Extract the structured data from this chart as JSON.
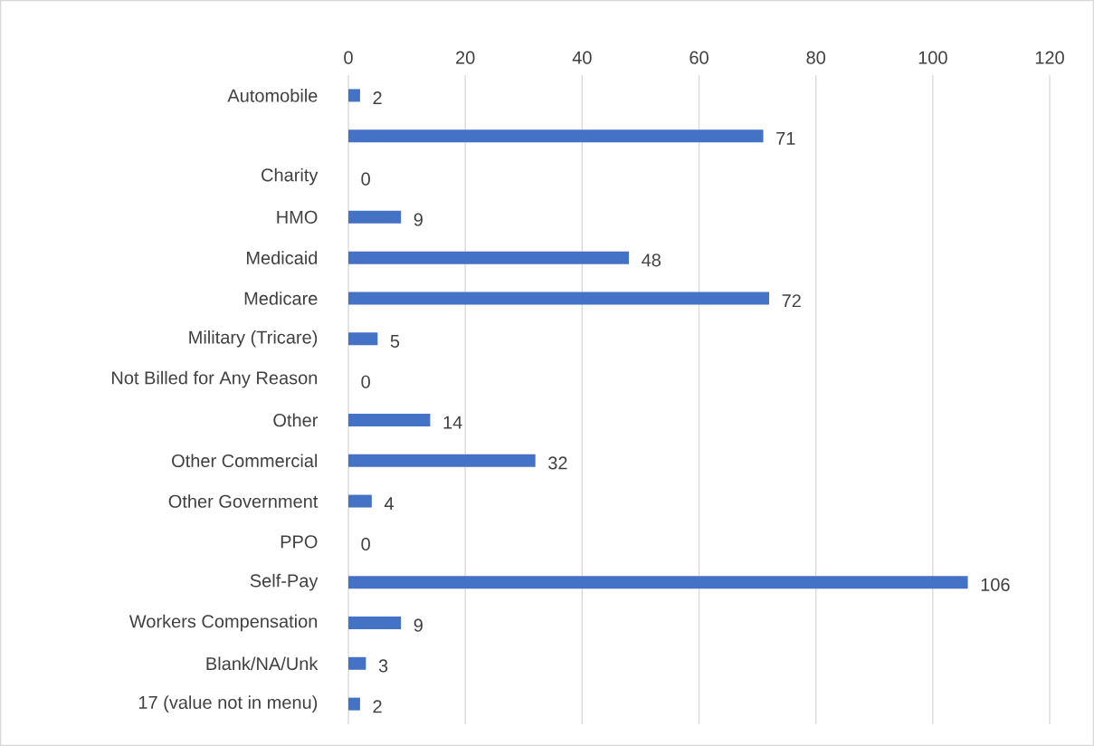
{
  "chart_data": {
    "type": "bar",
    "orientation": "horizontal",
    "categories": [
      "Automobile",
      null,
      "Charity",
      "HMO",
      "Medicaid",
      "Medicare",
      "Military (Tricare)",
      "Not Billed for Any Reason",
      "Other",
      "Other Commercial",
      "Other Government",
      "PPO",
      "Self-Pay",
      "Workers Compensation",
      "Blank/NA/Unk",
      "17 (value not in menu)"
    ],
    "values": [
      2,
      71,
      0,
      9,
      48,
      72,
      5,
      0,
      14,
      32,
      4,
      0,
      106,
      9,
      3,
      2
    ],
    "color": "#4472c4",
    "xlim": [
      0,
      120
    ],
    "xticks": [
      0,
      20,
      40,
      60,
      80,
      100,
      120
    ],
    "grid": "x",
    "data_labels": true
  }
}
